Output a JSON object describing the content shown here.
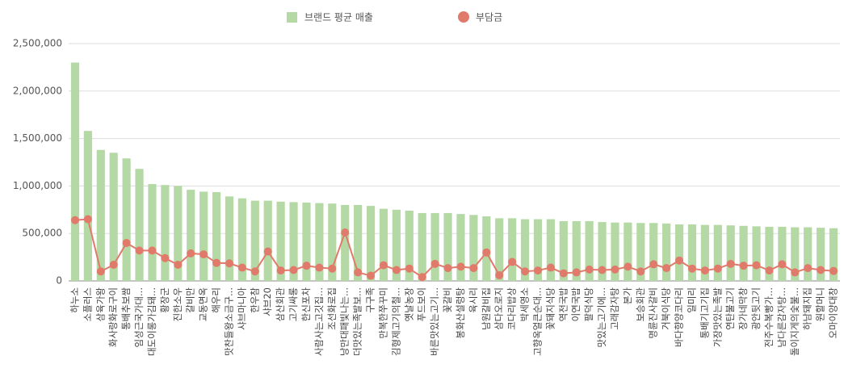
{
  "chart_data": {
    "type": "combo",
    "categories": [
      "하누소",
      "소플러스",
      "삼육가왕",
      "화사랑화로구이",
      "통배추보쌈",
      "임성근국가대...",
      "대도이롱가김돼...",
      "황장군",
      "진한소우",
      "갈비만",
      "교동면옥",
      "해우리",
      "맛찬들왕소금구...",
      "샤브마니아",
      "한우참",
      "샤브20",
      "삼산회관",
      "고기싸롱",
      "한신포차",
      "사람사는고깃집...",
      "조선화로집",
      "낭만대패빛나는...",
      "더맛있는족발보...",
      "구구족",
      "만복한쭈꾸미",
      "김형제고기의철...",
      "옛날농장",
      "푸드보이",
      "바른맛있는고기...",
      "꽃갈비",
      "봉화산설렁탕",
      "육시리",
      "남원갈비집",
      "삼다오로지",
      "코다리밥상",
      "박세영소",
      "고향옥얼큰순대...",
      "꽃돼지식당",
      "역전국밥",
      "이연국밥",
      "팔덕식당",
      "맛있는고기에...",
      "고래감자탕",
      "본가",
      "보승회관",
      "명륜진사갈비",
      "거북이식당",
      "바다향양코다리",
      "일미리",
      "통배기고기집",
      "가장맛있는족발",
      "연탄불고기",
      "장가네막창",
      "광안뒷고기",
      "전주수복빵가...",
      "남다른감자탕...",
      "돌이지게의숯불...",
      "하남돼지집",
      "원할머니",
      "오마이양대창"
    ],
    "series": [
      {
        "name": "브랜드 평균 매출",
        "type": "bar",
        "color": "#b5d9a5",
        "values": [
          2300000,
          1580000,
          1380000,
          1350000,
          1290000,
          1180000,
          1020000,
          1010000,
          1000000,
          960000,
          940000,
          935000,
          890000,
          870000,
          845000,
          845000,
          835000,
          830000,
          825000,
          820000,
          815000,
          800000,
          800000,
          790000,
          760000,
          750000,
          740000,
          715000,
          715000,
          715000,
          705000,
          695000,
          680000,
          660000,
          660000,
          650000,
          650000,
          650000,
          630000,
          630000,
          630000,
          620000,
          615000,
          615000,
          610000,
          610000,
          605000,
          595000,
          595000,
          590000,
          590000,
          585000,
          580000,
          575000,
          570000,
          570000,
          565000,
          565000,
          560000,
          555000
        ]
      },
      {
        "name": "부담금",
        "type": "line",
        "color": "#e07a6a",
        "values": [
          640000,
          650000,
          100000,
          170000,
          400000,
          320000,
          320000,
          240000,
          170000,
          290000,
          280000,
          190000,
          185000,
          140000,
          100000,
          310000,
          110000,
          115000,
          160000,
          140000,
          130000,
          510000,
          90000,
          55000,
          165000,
          115000,
          130000,
          40000,
          180000,
          135000,
          150000,
          135000,
          300000,
          60000,
          200000,
          100000,
          110000,
          140000,
          80000,
          90000,
          120000,
          115000,
          120000,
          150000,
          100000,
          175000,
          135000,
          215000,
          130000,
          110000,
          130000,
          180000,
          160000,
          165000,
          110000,
          175000,
          90000,
          135000,
          115000,
          105000
        ]
      }
    ],
    "ylim": [
      0,
      2500000
    ],
    "yticks": [
      0,
      {
        "value": 500000,
        "label": "500,000"
      },
      {
        "value": 1000000,
        "label": "1,000,000"
      },
      {
        "value": 1500000,
        "label": "1,500,000"
      },
      {
        "value": 2000000,
        "label": "2,000,000"
      },
      {
        "value": 2500000,
        "label": "2,500,000"
      }
    ],
    "grid": true,
    "legend": "top"
  }
}
